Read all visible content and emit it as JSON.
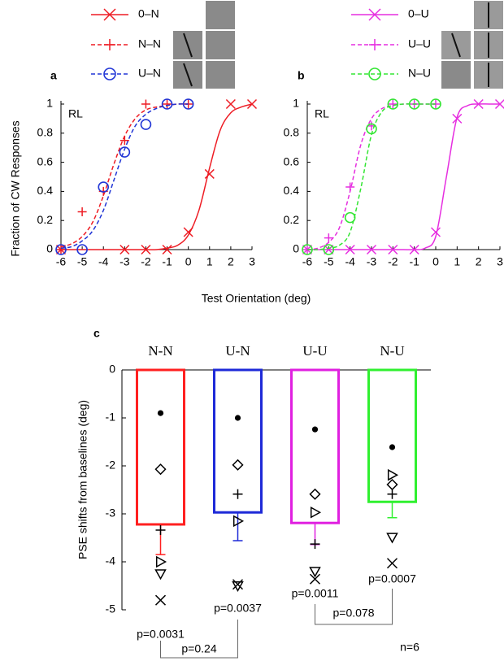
{
  "chart_data": [
    {
      "type": "line",
      "panel_label": "a",
      "annotation": "RL",
      "ylabel": "Fraction of CW Responses",
      "xlabel": "Test Orientation (deg)",
      "xlim": [
        -6,
        3
      ],
      "ylim": [
        0,
        1
      ],
      "xticks": [
        -6,
        -5,
        -4,
        -3,
        -2,
        -1,
        0,
        1,
        2,
        3
      ],
      "yticks": [
        0,
        0.2,
        0.4,
        0.6,
        0.8,
        1
      ],
      "series": [
        {
          "name": "0–N",
          "color": "#ee1c24",
          "marker": "x",
          "dash": false,
          "x": [
            -6,
            -3,
            -2,
            -1,
            0,
            1,
            2,
            3
          ],
          "values": [
            0,
            0,
            0,
            0,
            0.12,
            0.52,
            1,
            1
          ],
          "fit_x": [
            -6,
            -5.5,
            -5,
            -4.5,
            -4,
            -3.5,
            -3,
            -2.5,
            -2,
            -1.5,
            -1,
            -0.5,
            0,
            0.5,
            1,
            1.5,
            2,
            2.5,
            3
          ],
          "fit_values": [
            0,
            0,
            0,
            0,
            0,
            0,
            0,
            0,
            0,
            0,
            0.01,
            0.03,
            0.1,
            0.27,
            0.56,
            0.82,
            0.94,
            0.98,
            1
          ]
        },
        {
          "name": "N–N",
          "color": "#ee1c24",
          "marker": "plus",
          "dash": true,
          "x": [
            -6,
            -5,
            -4,
            -3,
            -2,
            -1,
            0
          ],
          "values": [
            0,
            0.26,
            0.4,
            0.75,
            1,
            1,
            1
          ],
          "fit_x": [
            -6,
            -5.5,
            -5,
            -4.5,
            -4,
            -3.5,
            -3,
            -2.5,
            -2,
            -1.5,
            -1,
            -0.5,
            0
          ],
          "fit_values": [
            0.02,
            0.04,
            0.09,
            0.19,
            0.37,
            0.59,
            0.78,
            0.9,
            0.96,
            0.98,
            0.99,
            1,
            1
          ]
        },
        {
          "name": "U–N",
          "color": "#2236d6",
          "marker": "circle",
          "dash": true,
          "x": [
            -6,
            -5,
            -4,
            -3,
            -2,
            -1,
            0
          ],
          "values": [
            0,
            0,
            0.43,
            0.67,
            0.86,
            1,
            1
          ],
          "fit_x": [
            -6,
            -5.5,
            -5,
            -4.5,
            -4,
            -3.5,
            -3,
            -2.5,
            -2,
            -1.5,
            -1,
            -0.5,
            0
          ],
          "fit_values": [
            0.01,
            0.02,
            0.06,
            0.13,
            0.27,
            0.48,
            0.69,
            0.85,
            0.93,
            0.97,
            0.99,
            1,
            1
          ]
        }
      ]
    },
    {
      "type": "line",
      "panel_label": "b",
      "annotation": "RL",
      "xlim": [
        -6,
        3
      ],
      "ylim": [
        0,
        1
      ],
      "xticks": [
        -6,
        -5,
        -4,
        -3,
        -2,
        -1,
        0,
        1,
        2,
        3
      ],
      "yticks": [
        0,
        0.2,
        0.4,
        0.6,
        0.8,
        1
      ],
      "series": [
        {
          "name": "0–U",
          "color": "#e62ee0",
          "marker": "x",
          "dash": false,
          "x": [
            -6,
            -5,
            -4,
            -3,
            -2,
            -1,
            0,
            1,
            2,
            3
          ],
          "values": [
            0,
            0,
            0,
            0,
            0,
            0,
            0.12,
            0.9,
            1,
            1
          ],
          "fit_x": [
            -6,
            -5.5,
            -5,
            -4.5,
            -4,
            -3.5,
            -3,
            -2.5,
            -2,
            -1.5,
            -1,
            -0.5,
            0,
            0.5,
            1,
            1.5,
            2,
            2.5,
            3
          ],
          "fit_values": [
            0,
            0,
            0,
            0,
            0,
            0,
            0,
            0,
            0,
            0,
            0,
            0.01,
            0.09,
            0.5,
            0.91,
            0.99,
            1,
            1,
            1
          ]
        },
        {
          "name": "U–U",
          "color": "#e62ee0",
          "marker": "plus",
          "dash": true,
          "x": [
            -6,
            -5,
            -4,
            -3,
            -2,
            -1,
            0
          ],
          "values": [
            0,
            0.08,
            0.43,
            0.85,
            1,
            1,
            1
          ],
          "fit_x": [
            -6,
            -5.5,
            -5,
            -4.5,
            -4,
            -3.5,
            -3,
            -2.5,
            -2,
            -1.5,
            -1,
            -0.5,
            0
          ],
          "fit_values": [
            0,
            0.01,
            0.05,
            0.15,
            0.4,
            0.72,
            0.9,
            0.97,
            0.99,
            1,
            1,
            1,
            1
          ]
        },
        {
          "name": "N–U",
          "color": "#33e633",
          "marker": "circle",
          "dash": true,
          "x": [
            -6,
            -5,
            -4,
            -3,
            -2,
            -1,
            0
          ],
          "values": [
            0,
            0,
            0.22,
            0.83,
            1,
            1,
            1
          ],
          "fit_x": [
            -6,
            -5.5,
            -5,
            -4.5,
            -4,
            -3.5,
            -3,
            -2.5,
            -2,
            -1.5,
            -1,
            -0.5,
            0
          ],
          "fit_values": [
            0,
            0,
            0.01,
            0.03,
            0.12,
            0.42,
            0.79,
            0.95,
            0.99,
            1,
            1,
            1,
            1
          ]
        }
      ]
    },
    {
      "type": "bar",
      "panel_label": "c",
      "ylabel": "PSE shifts from baselines (deg)",
      "categories": [
        "N-N",
        "U-N",
        "U-U",
        "N-U"
      ],
      "values": [
        -3.22,
        -2.97,
        -3.19,
        -2.75
      ],
      "errors": [
        0.63,
        0.59,
        0.45,
        0.33
      ],
      "colors": [
        "#ff2020",
        "#1e2ad8",
        "#e020e0",
        "#30f030"
      ],
      "ylim": [
        -5,
        0
      ],
      "yticks": [
        0,
        -1,
        -2,
        -3,
        -4,
        -5
      ],
      "subjects": [
        {
          "marker": "dot",
          "values": [
            -0.9,
            -1.0,
            -1.24,
            -1.61
          ]
        },
        {
          "marker": "diamond",
          "values": [
            -2.07,
            -1.98,
            -2.59,
            -2.39
          ]
        },
        {
          "marker": "plus",
          "values": [
            -3.34,
            -2.59,
            -3.63,
            -2.59
          ]
        },
        {
          "marker": "triangle-right",
          "values": [
            -4.0,
            -3.15,
            -2.97,
            -2.19
          ]
        },
        {
          "marker": "triangle-down",
          "values": [
            -4.25,
            -4.5,
            -4.2,
            -3.49
          ]
        },
        {
          "marker": "x",
          "values": [
            -4.8,
            -4.47,
            -4.36,
            -4.03
          ]
        }
      ],
      "annotations": [
        "p=0.0031",
        "p=0.0037",
        "p=0.0011",
        "p=0.0007",
        "p=0.24",
        "p=0.078",
        "n=6"
      ]
    }
  ]
}
